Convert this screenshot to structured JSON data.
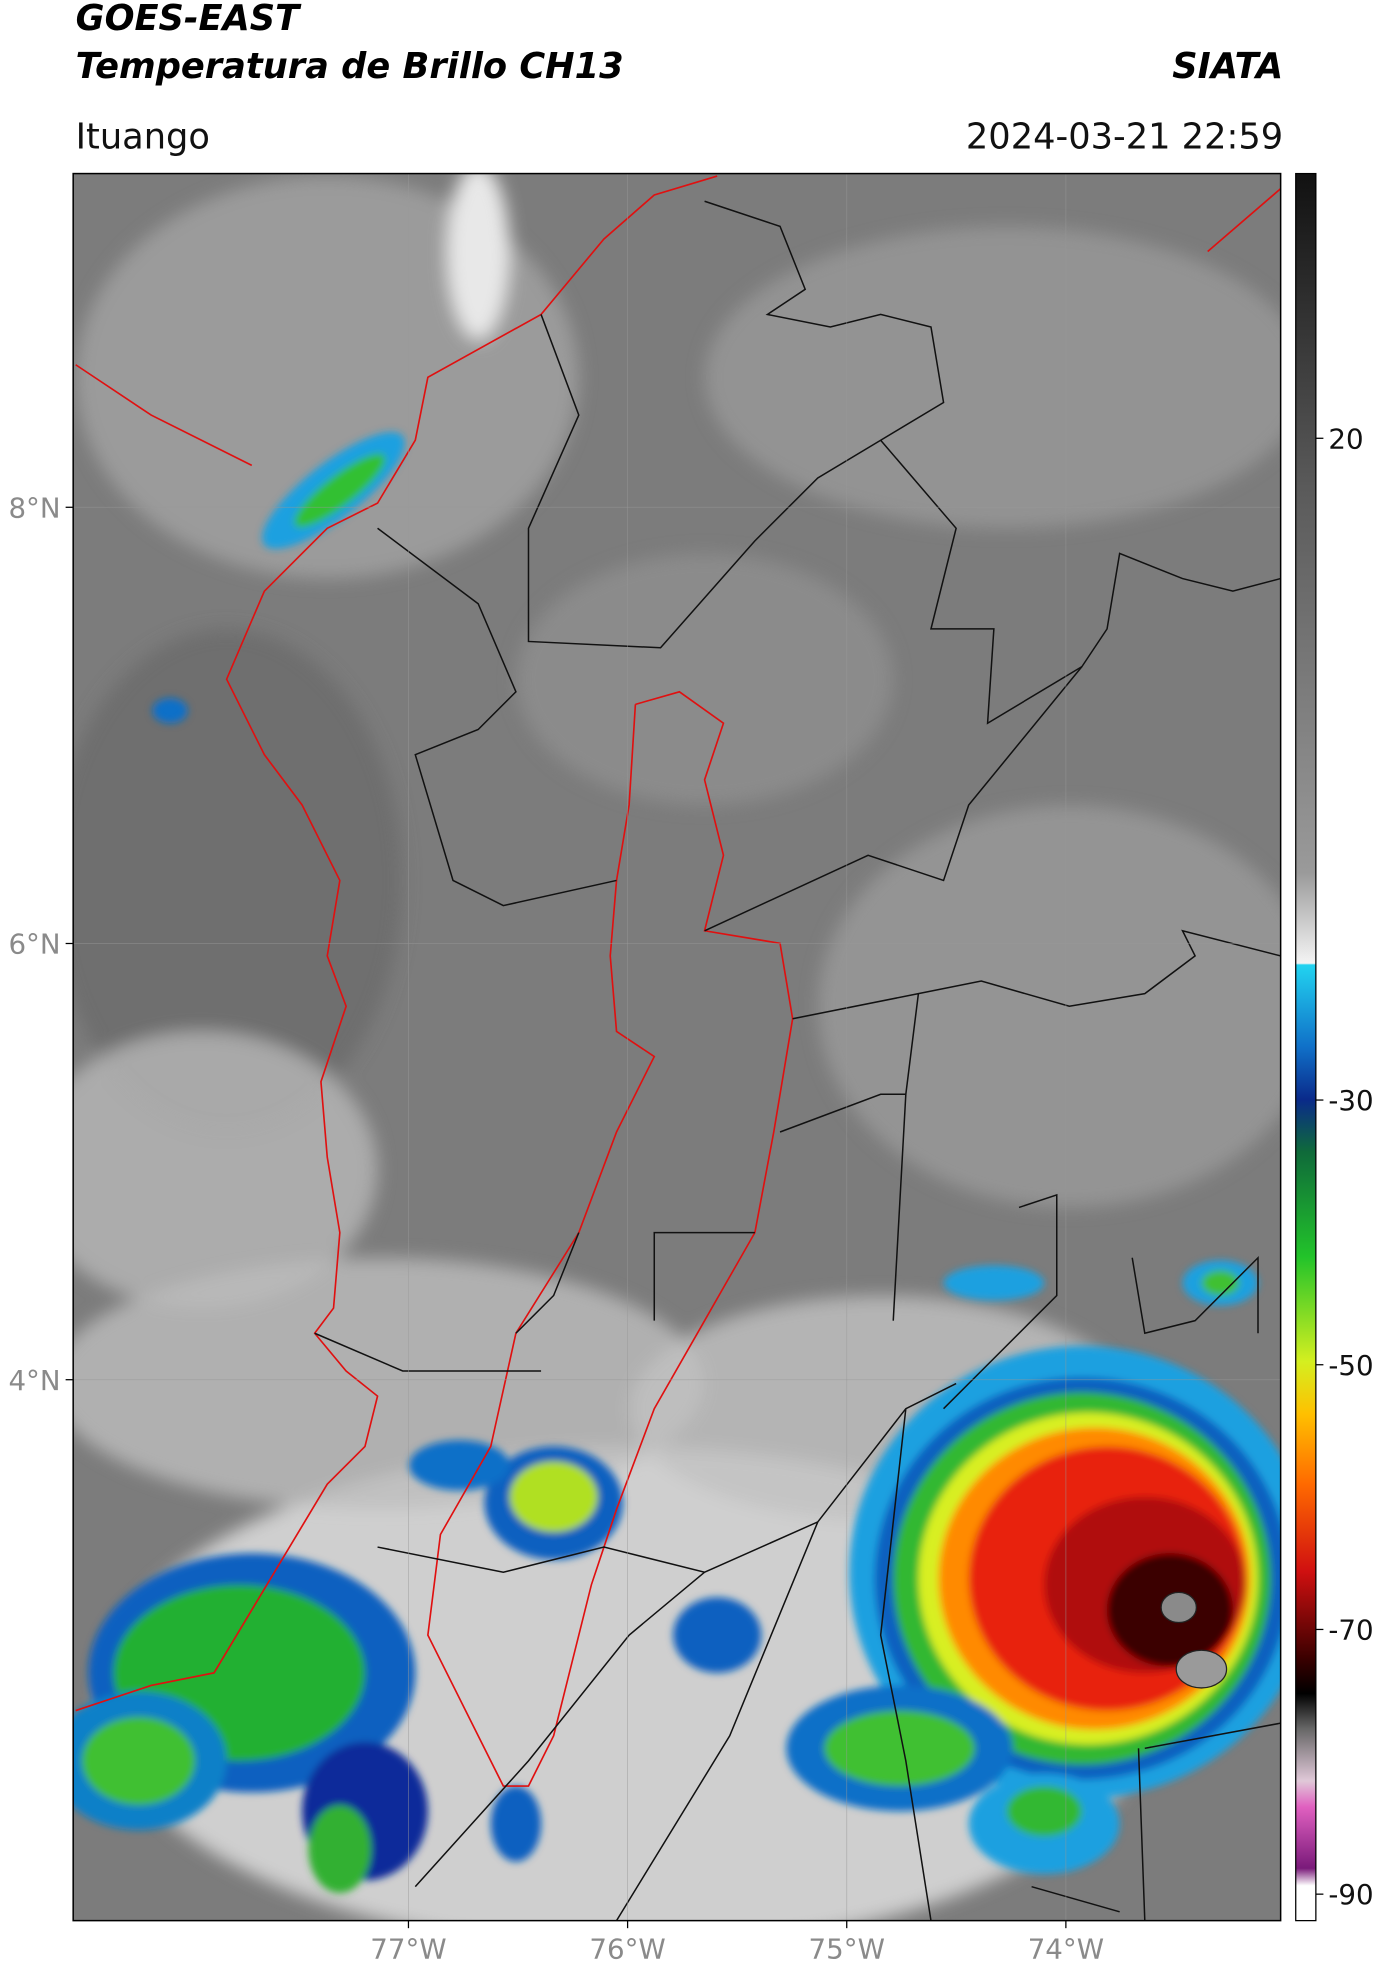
{
  "header": {
    "satellite": "GOES-EAST",
    "product": "Temperatura de Brillo CH13",
    "source": "SIATA",
    "location": "Ituango",
    "datetime": "2024-03-21 22:59"
  },
  "map": {
    "lon_range": [
      -78.53,
      -73.02
    ],
    "lat_range": [
      1.52,
      9.53
    ],
    "grid": true,
    "lon_ticks": [
      {
        "value": -77,
        "label": "77°W"
      },
      {
        "value": -76,
        "label": "76°W"
      },
      {
        "value": -75,
        "label": "75°W"
      },
      {
        "value": -74,
        "label": "74°W"
      }
    ],
    "lat_ticks": [
      {
        "value": 8,
        "label": "8°N"
      },
      {
        "value": 6,
        "label": "6°N"
      },
      {
        "value": 4,
        "label": "4°N"
      }
    ]
  },
  "colorbar": {
    "range": [
      -92,
      40
    ],
    "ticks": [
      20,
      -30,
      -50,
      -70,
      -90
    ]
  }
}
